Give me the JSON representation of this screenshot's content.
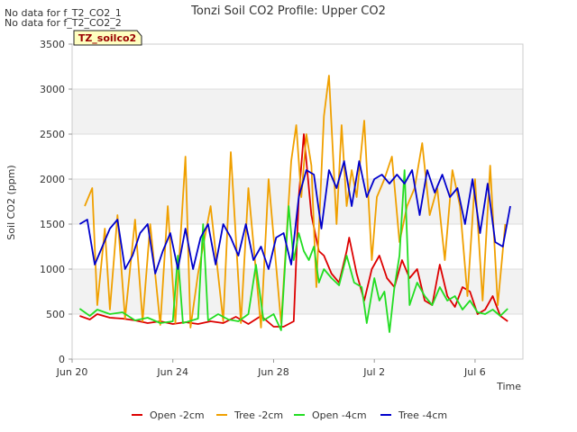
{
  "notes": [
    "No data for f_T2_CO2_1",
    "No data for f_T2_CO2_2"
  ],
  "badge": "TZ_soilco2",
  "chart_data": {
    "type": "line",
    "title": "Tonzi Soil CO2 Profile: Upper CO2",
    "xlabel": "Time",
    "ylabel": "Soil CO2 (ppm)",
    "xlim": [
      "Jun 20",
      "Jul 7.9"
    ],
    "ylim": [
      0,
      3500
    ],
    "x_ticks": [
      {
        "label": "Jun 20",
        "day": 0
      },
      {
        "label": "Jun 24",
        "day": 4
      },
      {
        "label": "Jun 28",
        "day": 8
      },
      {
        "label": "Jul 2",
        "day": 12
      },
      {
        "label": "Jul 6",
        "day": 16
      }
    ],
    "y_ticks": [
      0,
      500,
      1000,
      1500,
      2000,
      2500,
      3000,
      3500
    ],
    "grid": true,
    "legend_position": "bottom",
    "series": [
      {
        "name": "Open -2cm",
        "color": "#dd0000",
        "x": [
          0.3,
          0.7,
          1.0,
          1.5,
          2.0,
          2.5,
          3.0,
          3.5,
          4.0,
          4.5,
          5.0,
          5.5,
          6.0,
          6.5,
          7.0,
          7.5,
          8.0,
          8.4,
          8.8,
          9.0,
          9.2,
          9.5,
          9.8,
          10.0,
          10.3,
          10.6,
          10.9,
          11.0,
          11.3,
          11.6,
          11.9,
          12.2,
          12.5,
          12.8,
          13.1,
          13.4,
          13.7,
          14.0,
          14.3,
          14.6,
          14.9,
          15.2,
          15.5,
          15.8,
          16.1,
          16.4,
          16.7,
          17.0,
          17.3
        ],
        "y": [
          480,
          440,
          500,
          460,
          450,
          430,
          400,
          420,
          390,
          410,
          390,
          420,
          400,
          470,
          390,
          480,
          360,
          360,
          420,
          1800,
          2500,
          1600,
          1200,
          1150,
          950,
          850,
          1200,
          1350,
          950,
          650,
          1000,
          1150,
          900,
          800,
          1100,
          900,
          1000,
          650,
          600,
          1050,
          700,
          580,
          800,
          750,
          500,
          550,
          700,
          480,
          420
        ]
      },
      {
        "name": "Tree -2cm",
        "color": "#f0a000",
        "x": [
          0.5,
          0.8,
          1.0,
          1.3,
          1.5,
          1.8,
          2.1,
          2.5,
          2.8,
          3.1,
          3.5,
          3.8,
          4.1,
          4.5,
          4.7,
          5.0,
          5.5,
          6.0,
          6.3,
          6.7,
          7.0,
          7.5,
          7.8,
          8.3,
          8.7,
          8.9,
          9.1,
          9.3,
          9.5,
          9.7,
          10.0,
          10.2,
          10.5,
          10.7,
          10.9,
          11.1,
          11.3,
          11.6,
          11.9,
          12.1,
          12.4,
          12.7,
          13.0,
          13.3,
          13.6,
          13.9,
          14.2,
          14.5,
          14.8,
          15.1,
          15.4,
          15.7,
          16.0,
          16.3,
          16.6,
          16.9,
          17.2
        ],
        "y": [
          1700,
          1900,
          600,
          1450,
          550,
          1600,
          450,
          1550,
          420,
          1500,
          380,
          1700,
          400,
          2250,
          350,
          950,
          1700,
          420,
          2300,
          400,
          1900,
          350,
          2000,
          400,
          2200,
          2600,
          1800,
          2500,
          2150,
          800,
          2700,
          3150,
          1500,
          2600,
          1700,
          2100,
          1800,
          2650,
          1100,
          1800,
          2000,
          2250,
          1300,
          1700,
          1900,
          2400,
          1600,
          1900,
          1100,
          2100,
          1700,
          700,
          2000,
          650,
          2150,
          600,
          1500
        ]
      },
      {
        "name": "Open -4cm",
        "color": "#22dd22",
        "x": [
          0.3,
          0.7,
          1.0,
          1.5,
          2.0,
          2.5,
          3.0,
          3.5,
          4.0,
          4.2,
          4.4,
          5.0,
          5.2,
          5.4,
          5.8,
          6.2,
          6.6,
          7.0,
          7.3,
          7.6,
          8.0,
          8.3,
          8.6,
          8.8,
          9.0,
          9.2,
          9.4,
          9.6,
          9.8,
          10.0,
          10.3,
          10.6,
          10.9,
          11.2,
          11.5,
          11.7,
          12.0,
          12.2,
          12.4,
          12.6,
          12.8,
          13.0,
          13.2,
          13.4,
          13.7,
          14.0,
          14.3,
          14.6,
          14.9,
          15.2,
          15.5,
          15.8,
          16.1,
          16.4,
          16.7,
          17.0,
          17.3
        ],
        "y": [
          560,
          480,
          550,
          500,
          520,
          430,
          460,
          400,
          420,
          1150,
          400,
          450,
          1500,
          430,
          500,
          440,
          420,
          500,
          1050,
          430,
          500,
          320,
          1700,
          1100,
          1400,
          1200,
          1100,
          1250,
          850,
          1000,
          900,
          820,
          1150,
          850,
          800,
          400,
          900,
          650,
          750,
          300,
          800,
          1150,
          2100,
          600,
          850,
          700,
          600,
          800,
          650,
          700,
          550,
          650,
          520,
          500,
          550,
          480,
          560
        ]
      },
      {
        "name": "Tree -4cm",
        "color": "#0000cc",
        "x": [
          0.3,
          0.6,
          0.9,
          1.2,
          1.5,
          1.8,
          2.1,
          2.4,
          2.7,
          3.0,
          3.3,
          3.6,
          3.9,
          4.2,
          4.5,
          4.8,
          5.1,
          5.4,
          5.7,
          6.0,
          6.3,
          6.6,
          6.9,
          7.2,
          7.5,
          7.8,
          8.1,
          8.4,
          8.7,
          9.0,
          9.3,
          9.6,
          9.9,
          10.2,
          10.5,
          10.8,
          11.1,
          11.4,
          11.7,
          12.0,
          12.3,
          12.6,
          12.9,
          13.2,
          13.5,
          13.8,
          14.1,
          14.4,
          14.7,
          15.0,
          15.3,
          15.6,
          15.9,
          16.2,
          16.5,
          16.8,
          17.1,
          17.4
        ],
        "y": [
          1500,
          1550,
          1050,
          1250,
          1450,
          1550,
          1000,
          1150,
          1400,
          1500,
          950,
          1200,
          1400,
          1000,
          1450,
          1000,
          1350,
          1500,
          1050,
          1500,
          1350,
          1150,
          1500,
          1100,
          1250,
          1000,
          1350,
          1400,
          1050,
          1800,
          2100,
          2050,
          1450,
          2100,
          1900,
          2200,
          1700,
          2200,
          1800,
          2000,
          2050,
          1950,
          2050,
          1950,
          2100,
          1600,
          2100,
          1850,
          2050,
          1800,
          1900,
          1500,
          2000,
          1400,
          1950,
          1300,
          1250,
          1700
        ]
      }
    ]
  }
}
